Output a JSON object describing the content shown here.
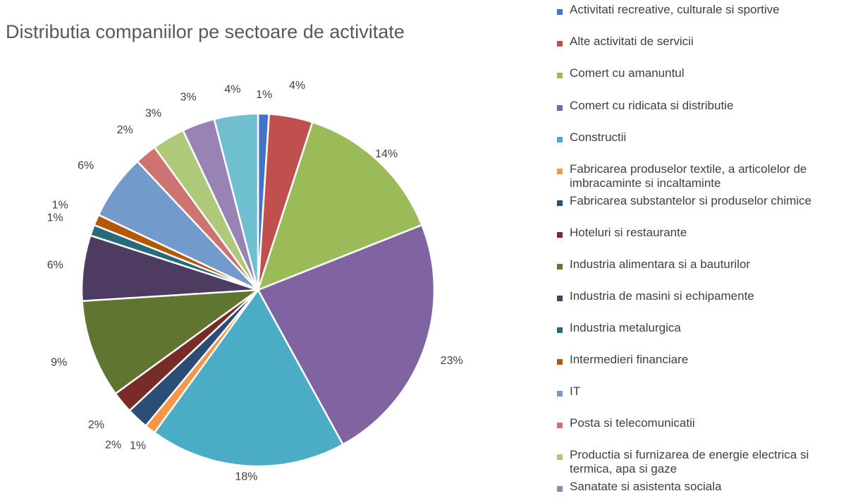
{
  "chart_data": {
    "type": "pie",
    "title": "Distributia companiilor pe sectoare de activitate",
    "legend_position": "right",
    "data_labels": "percent",
    "slices": [
      {
        "name": "Activitati recreative, culturale si sportive",
        "value": 1,
        "label": "1%",
        "color": "#4472c4"
      },
      {
        "name": "Alte activitati de servicii",
        "value": 4,
        "label": "4%",
        "color": "#c0504d"
      },
      {
        "name": "Comert cu amanuntul",
        "value": 14,
        "label": "14%",
        "color": "#9bbb59"
      },
      {
        "name": "Comert cu ridicata si distributie",
        "value": 23,
        "label": "23%",
        "color": "#8064a2"
      },
      {
        "name": "Constructii",
        "value": 18,
        "label": "18%",
        "color": "#4bacc6"
      },
      {
        "name": "Fabricarea produselor textile, a articolelor de imbracaminte si incaltaminte",
        "value": 1,
        "label": "1%",
        "color": "#f79646"
      },
      {
        "name": "Fabricarea substantelor si produselor chimice",
        "value": 2,
        "label": "2%",
        "color": "#2c4d75"
      },
      {
        "name": "Hoteluri si restaurante",
        "value": 2,
        "label": "2%",
        "color": "#772c2a"
      },
      {
        "name": "Industria alimentara si a bauturilor",
        "value": 9,
        "label": "9%",
        "color": "#5f7530"
      },
      {
        "name": "Industria de masini si echipamente",
        "value": 6,
        "label": "6%",
        "color": "#4d3b62"
      },
      {
        "name": "Industria metalurgica",
        "value": 1,
        "label": "1%",
        "color": "#276a7c"
      },
      {
        "name": "Intermedieri financiare",
        "value": 1,
        "label": "1%",
        "color": "#b65708"
      },
      {
        "name": "IT",
        "value": 6,
        "label": "6%",
        "color": "#729aca"
      },
      {
        "name": "Posta si telecomunicatii",
        "value": 2,
        "label": "2%",
        "color": "#cd7371"
      },
      {
        "name": "Productia si furnizarea de energie electrica si termica, apa si gaze",
        "value": 3,
        "label": "3%",
        "color": "#afc97a"
      },
      {
        "name": "Sanatate si asistenta sociala",
        "value": 3,
        "label": "3%",
        "color": "#9983b5"
      },
      {
        "name": "",
        "value": 4,
        "label": "4%",
        "color": "#6fbfd1"
      }
    ]
  }
}
